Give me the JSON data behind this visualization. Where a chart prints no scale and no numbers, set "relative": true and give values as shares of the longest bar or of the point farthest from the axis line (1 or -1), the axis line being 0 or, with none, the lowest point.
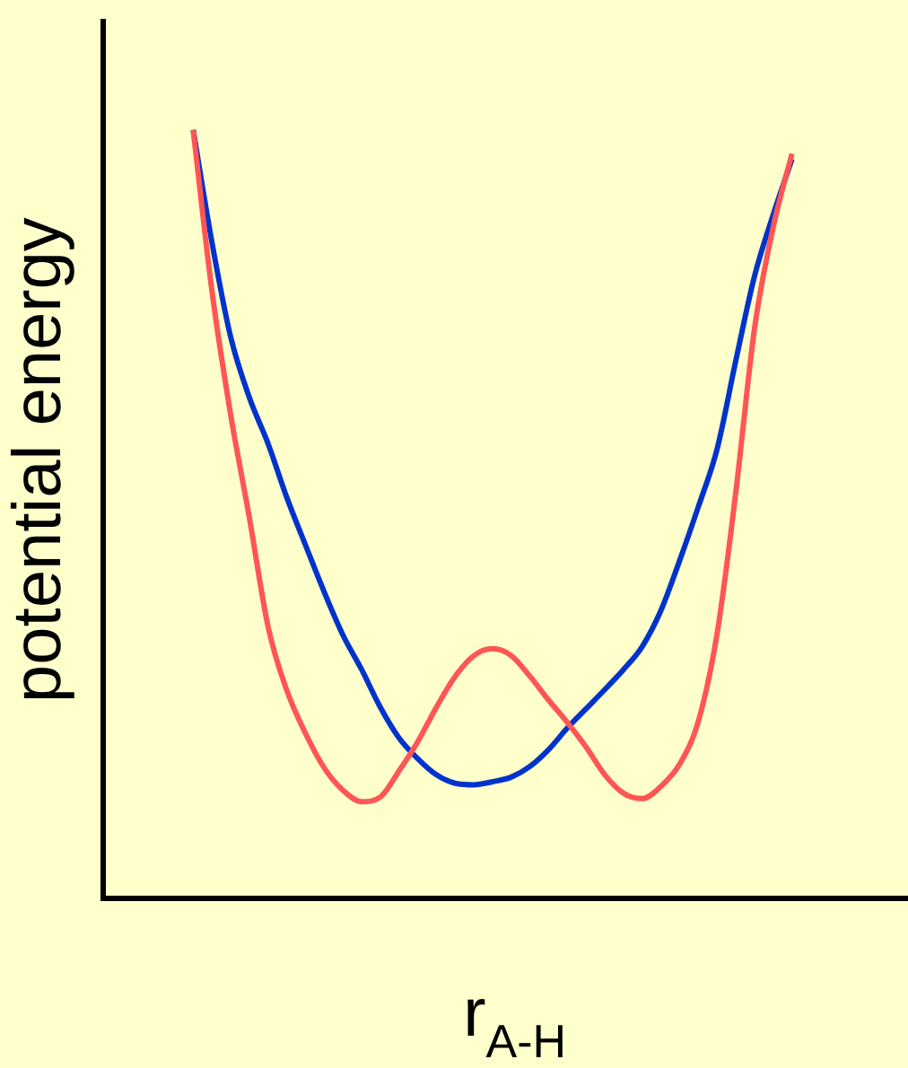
{
  "chart_data": {
    "type": "line",
    "relative": true,
    "xlabel": "r$_{A-H}$",
    "ylabel": "potential energy",
    "grid": false,
    "legend": false,
    "marker": "none",
    "line_style": "solid",
    "categories": [
      null,
      null,
      null,
      null,
      null,
      null,
      null,
      null,
      null,
      null,
      null,
      null,
      null,
      null,
      null,
      null,
      null,
      null,
      null,
      null,
      null,
      null,
      null,
      null,
      null,
      null,
      null,
      null,
      null,
      null,
      null,
      null,
      null
    ],
    "series": [
      {
        "color": "#ff5555",
        "values": [
          1,
          0.791,
          0.63,
          0.496,
          0.354,
          0.271,
          0.215,
          0.17,
          0.141,
          0.126,
          0.132,
          0.166,
          0.204,
          0.249,
          0.289,
          0.316,
          0.325,
          0.316,
          0.289,
          0.258,
          0.229,
          0.197,
          0.161,
          0.137,
          0.13,
          0.146,
          0.175,
          0.231,
          0.345,
          0.529,
          0.742,
          0.874,
          0.969
        ]
      },
      {
        "color": "#0033cc",
        "values": [
          1,
          0.854,
          0.731,
          0.652,
          0.592,
          0.522,
          0.46,
          0.399,
          0.343,
          0.298,
          0.249,
          0.209,
          0.182,
          0.161,
          0.15,
          0.148,
          0.152,
          0.158,
          0.172,
          0.194,
          0.222,
          0.247,
          0.272,
          0.298,
          0.328,
          0.375,
          0.44,
          0.51,
          0.585,
          0.7,
          0.81,
          0.89,
          0.962
        ]
      }
    ]
  }
}
